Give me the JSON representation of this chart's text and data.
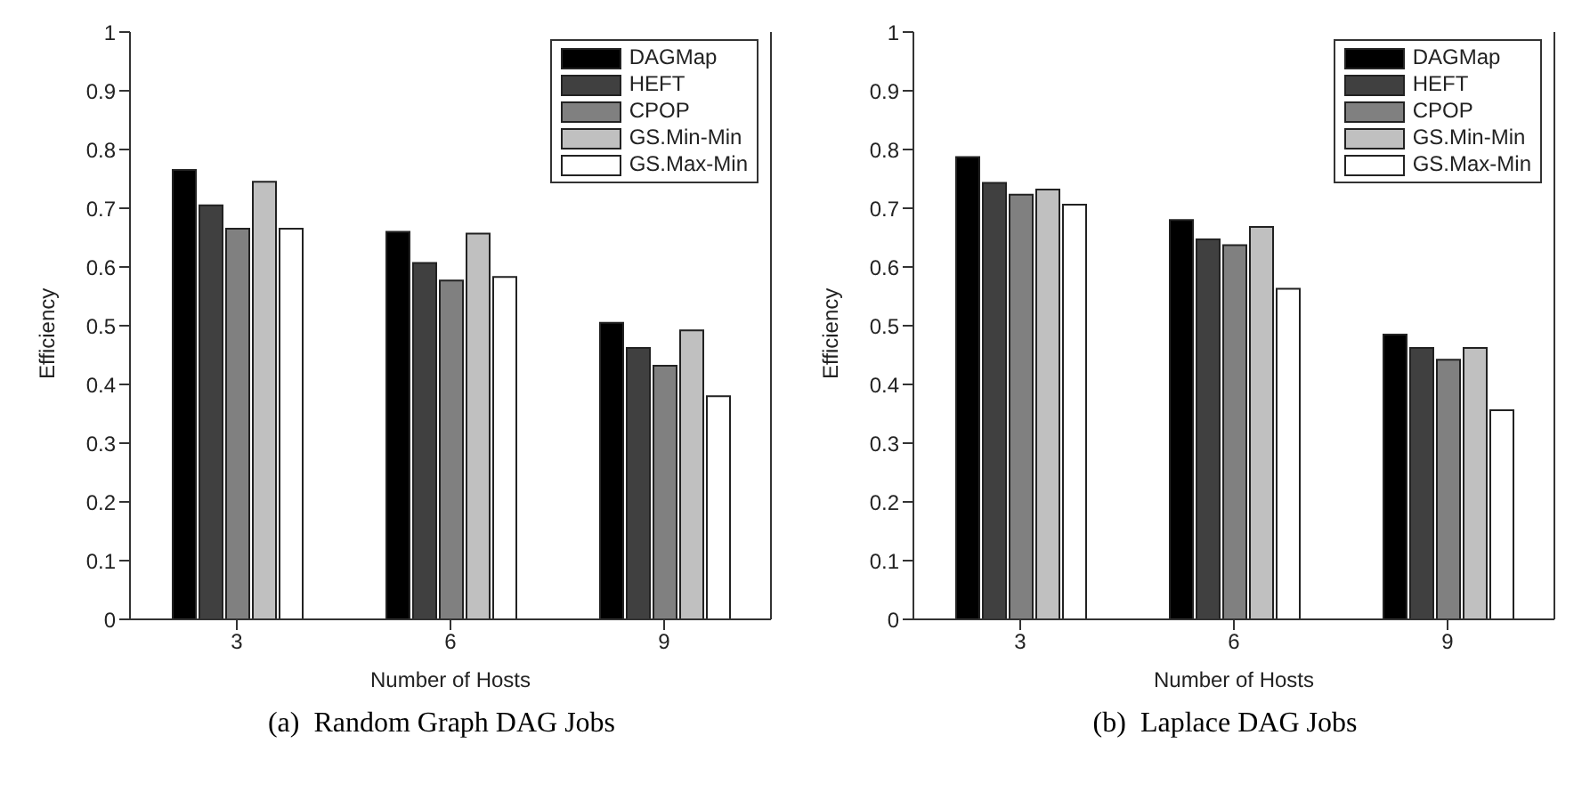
{
  "chart_data": [
    {
      "type": "bar",
      "xlabel": "Number of Hosts",
      "ylabel": "Efficiency",
      "categories": [
        "3",
        "6",
        "9"
      ],
      "ylim": [
        0,
        1
      ],
      "yticks": [
        0,
        0.1,
        0.2,
        0.3,
        0.4,
        0.5,
        0.6,
        0.7,
        0.8,
        0.9,
        1
      ],
      "legend": "top right",
      "annotations": [
        "(a)  Random Graph DAG Jobs"
      ],
      "series": [
        {
          "name": "DAGMap",
          "color": "#000000",
          "values": [
            0.765,
            0.66,
            0.505
          ]
        },
        {
          "name": "HEFT",
          "color": "#404040",
          "values": [
            0.705,
            0.607,
            0.462
          ]
        },
        {
          "name": "CPOP",
          "color": "#808080",
          "values": [
            0.665,
            0.577,
            0.432
          ]
        },
        {
          "name": "GS.Min-Min",
          "color": "#c0c0c0",
          "values": [
            0.745,
            0.657,
            0.492
          ]
        },
        {
          "name": "GS.Max-Min",
          "color": "#ffffff",
          "values": [
            0.665,
            0.583,
            0.38
          ]
        }
      ]
    },
    {
      "type": "bar",
      "xlabel": "Number of Hosts",
      "ylabel": "Efficiency",
      "categories": [
        "3",
        "6",
        "9"
      ],
      "ylim": [
        0,
        1
      ],
      "yticks": [
        0,
        0.1,
        0.2,
        0.3,
        0.4,
        0.5,
        0.6,
        0.7,
        0.8,
        0.9,
        1
      ],
      "legend": "top right",
      "annotations": [
        "(b)  Laplace DAG Jobs"
      ],
      "series": [
        {
          "name": "DAGMap",
          "color": "#000000",
          "values": [
            0.787,
            0.68,
            0.485
          ]
        },
        {
          "name": "HEFT",
          "color": "#404040",
          "values": [
            0.743,
            0.647,
            0.462
          ]
        },
        {
          "name": "CPOP",
          "color": "#808080",
          "values": [
            0.723,
            0.637,
            0.442
          ]
        },
        {
          "name": "GS.Min-Min",
          "color": "#c0c0c0",
          "values": [
            0.732,
            0.668,
            0.462
          ]
        },
        {
          "name": "GS.Max-Min",
          "color": "#ffffff",
          "values": [
            0.706,
            0.563,
            0.356
          ]
        }
      ]
    }
  ]
}
